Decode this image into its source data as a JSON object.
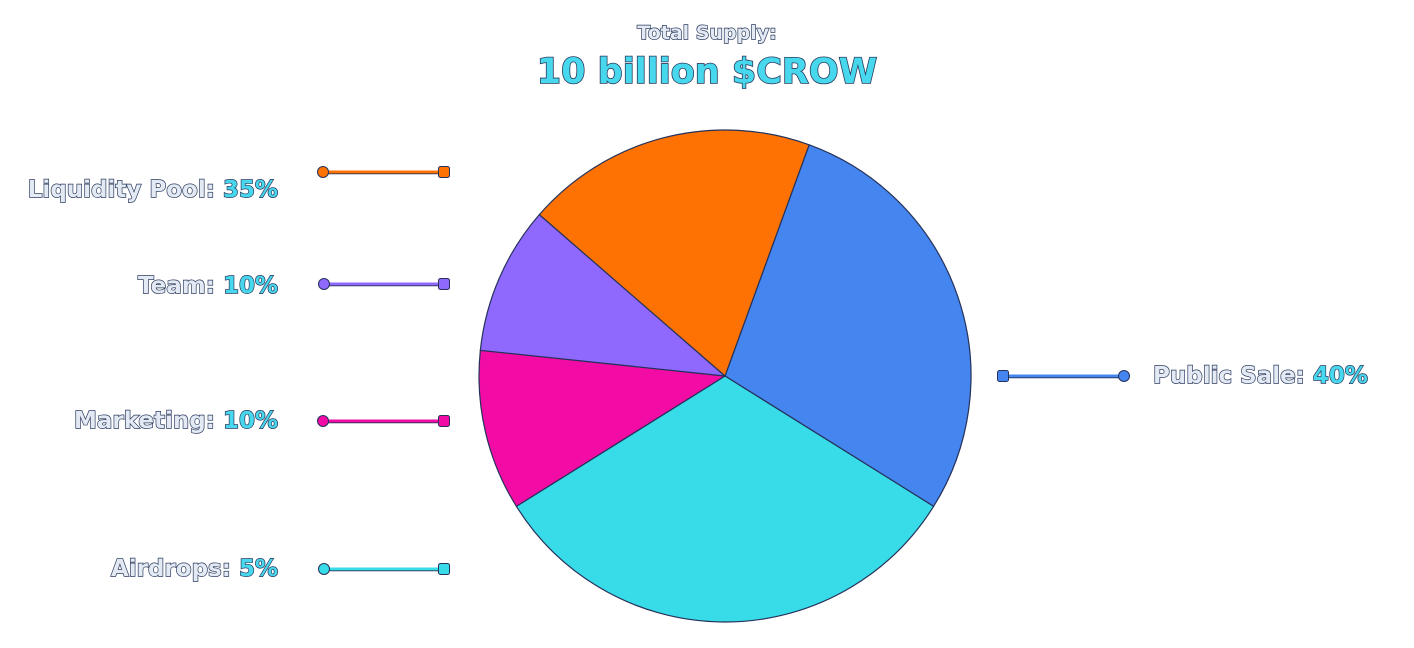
{
  "header": {
    "subtitle": "Total Supply:",
    "title": "10 billion $CROW"
  },
  "chart_data": {
    "type": "pie",
    "slices": [
      {
        "name": "Public Sale",
        "label": "Public Sale:",
        "percent_label": "40%",
        "value": 40,
        "color": "#4585f0"
      },
      {
        "name": "Airdrops",
        "label": "Airdrops:",
        "percent_label": "5%",
        "value": 5,
        "color": "#38dce8"
      },
      {
        "name": "Marketing",
        "label": "Marketing:",
        "percent_label": "10%",
        "value": 10,
        "color": "#f20ba5"
      },
      {
        "name": "Team",
        "label": "Team:",
        "percent_label": "10%",
        "value": 10,
        "color": "#8f69fd"
      },
      {
        "name": "Liquidity Pool",
        "label": "Liquidity Pool:",
        "percent_label": "35%",
        "value": 35,
        "color": "#fd7203"
      }
    ],
    "legend_placement": "callouts left and right"
  }
}
